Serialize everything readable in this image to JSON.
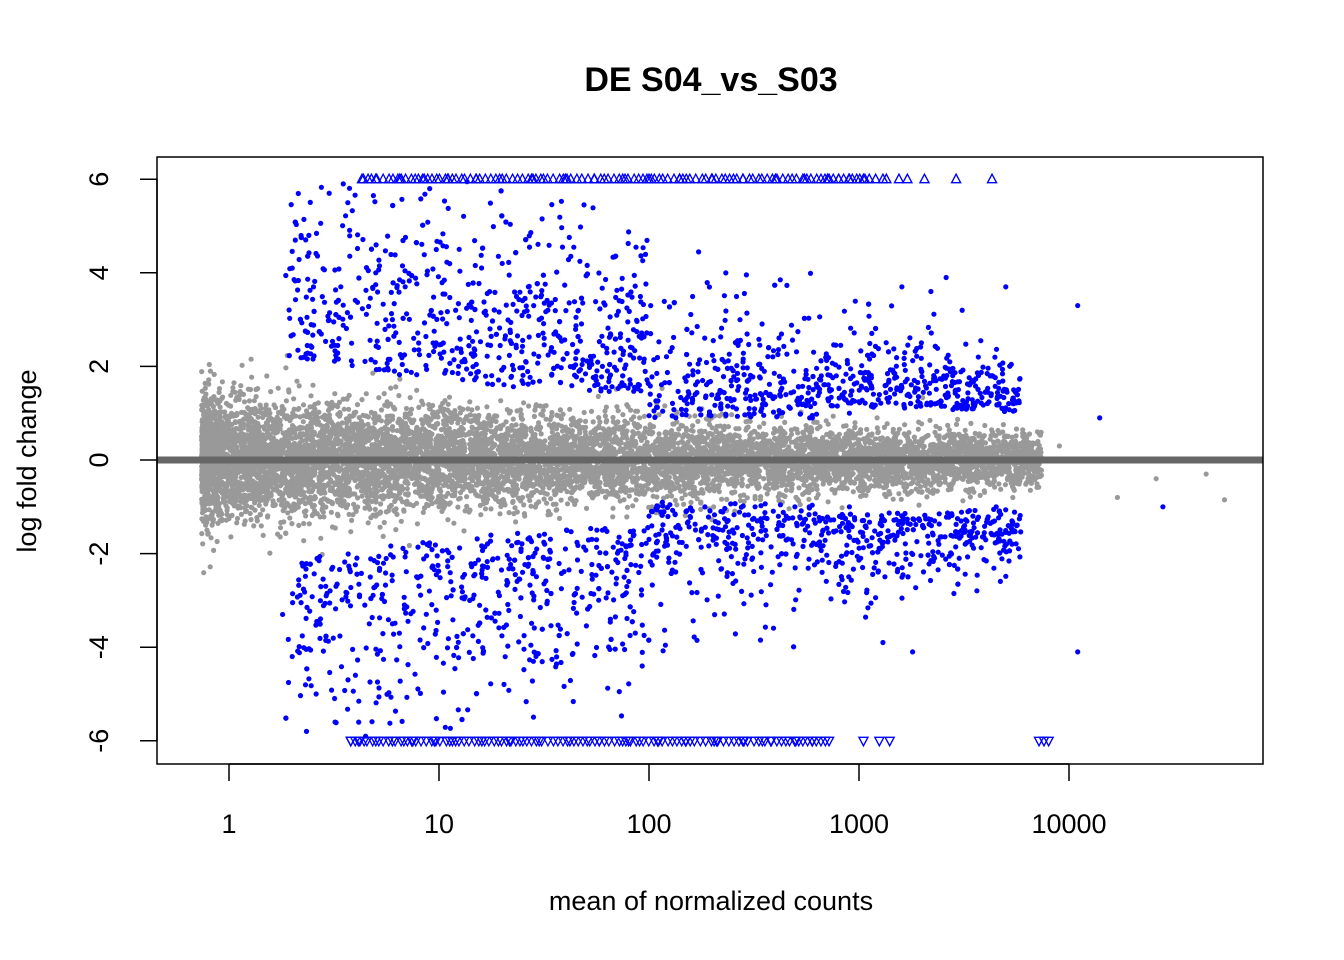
{
  "chart_data": {
    "type": "scatter",
    "title": "DE S04_vs_S03",
    "xlabel": "mean of normalized counts",
    "ylabel": "log fold change",
    "x_scale": "log10",
    "xlim": [
      0.5,
      90000
    ],
    "ylim": [
      -6.5,
      6.5
    ],
    "x_ticks": [
      1,
      10,
      100,
      1000,
      10000
    ],
    "x_tick_labels": [
      "1",
      "10",
      "100",
      "1000",
      "10000"
    ],
    "y_ticks": [
      -6,
      -4,
      -2,
      0,
      2,
      4,
      6
    ],
    "y_tick_labels": [
      "-6",
      "-4",
      "-2",
      "0",
      "2",
      "4",
      "6"
    ],
    "grid": false,
    "legend": "none",
    "reference_line": {
      "y": 0,
      "color": "#666666"
    },
    "clip_range": [
      -6,
      6
    ],
    "colors": {
      "not_significant": "#999999",
      "significant": "#0000ff",
      "baseline": "#666666"
    },
    "series": [
      {
        "marker": "triangle-up",
        "color": "#0000ff",
        "x": [
          4.3,
          5.0,
          6.5,
          8.5,
          11,
          15,
          20,
          28,
          40,
          55,
          75,
          100,
          140,
          200,
          280,
          400,
          550,
          720,
          800,
          900,
          1050,
          1200,
          1300,
          1350,
          1550,
          1700,
          2050,
          2900,
          4300
        ],
        "y": [
          6,
          6,
          6,
          6,
          6,
          6,
          6,
          6,
          6,
          6,
          6,
          6,
          6,
          6,
          6,
          6,
          6,
          6,
          6,
          6,
          6,
          6,
          6,
          6,
          6,
          6,
          6,
          6,
          6
        ]
      },
      {
        "marker": "triangle-down",
        "color": "#0000ff",
        "x": [
          3.8,
          4.2,
          5.0,
          6.0,
          7.5,
          9.5,
          12,
          16,
          22,
          30,
          42,
          58,
          80,
          110,
          150,
          210,
          280,
          380,
          500,
          600,
          720,
          1050,
          1250,
          1400,
          7200,
          7600,
          8000
        ],
        "y": [
          -6,
          -6,
          -6,
          -6,
          -6,
          -6,
          -6,
          -6,
          -6,
          -6,
          -6,
          -6,
          -6,
          -6,
          -6,
          -6,
          -6,
          -6,
          -6,
          -6,
          -6,
          -6,
          -6,
          -6,
          -6,
          -6,
          -6
        ]
      },
      {
        "marker": "dot",
        "color": "#0000ff",
        "x": [
          2.0,
          2.4,
          3.0,
          3.5,
          5.0,
          6.0,
          8.0,
          12,
          20,
          30,
          45,
          60,
          90,
          150,
          220,
          300,
          420,
          600,
          900,
          1600,
          2200,
          2600,
          3100,
          3700,
          4300,
          5000,
          11000,
          14000,
          28000,
          11000,
          3000
        ],
        "y": [
          4.1,
          4.8,
          5.7,
          5.9,
          4.0,
          3.0,
          2.5,
          3.2,
          4.2,
          3.0,
          2.3,
          2.0,
          1.6,
          1.3,
          1.2,
          1.1,
          1.0,
          0.9,
          1.0,
          3.7,
          3.6,
          3.9,
          3.2,
          2.2,
          1.8,
          3.7,
          3.3,
          0.9,
          -1.0,
          -4.1,
          -2.1
        ]
      },
      {
        "marker": "dot",
        "color": "#0000ff",
        "x": [
          1.8,
          2.0,
          2.6,
          3.2,
          4.0,
          6.0,
          9.0,
          14,
          25,
          40,
          60,
          100,
          150,
          220,
          320,
          450,
          650,
          900,
          1300,
          1800,
          2400,
          3200,
          4500
        ],
        "y": [
          -3.3,
          -4.2,
          -5.0,
          -5.6,
          -4.6,
          -3.5,
          -2.8,
          -3.0,
          -2.4,
          -1.9,
          -1.5,
          -1.2,
          -1.1,
          -1.1,
          -1.0,
          -1.2,
          -1.3,
          -1.0,
          -3.9,
          -4.1,
          -1.8,
          -1.5,
          -1.0
        ]
      },
      {
        "marker": "dot",
        "color": "#999999",
        "x": [
          0.75,
          0.8,
          1.0,
          1.3,
          1.8,
          2.5,
          3.5,
          5.0,
          7.0,
          10,
          15,
          25,
          40,
          70,
          120,
          200,
          350,
          600,
          1000,
          1800,
          3000,
          5000,
          9000,
          17000,
          26000,
          45000,
          55000
        ],
        "y": [
          0.3,
          -0.3,
          0.6,
          -0.6,
          1.0,
          -1.0,
          1.3,
          -1.2,
          1.1,
          -1.0,
          0.9,
          -0.8,
          0.7,
          -0.7,
          0.6,
          -0.6,
          0.5,
          -0.4,
          0.3,
          -0.3,
          0.3,
          0.5,
          0.3,
          -0.8,
          -0.4,
          -0.3,
          -0.85
        ]
      }
    ]
  }
}
